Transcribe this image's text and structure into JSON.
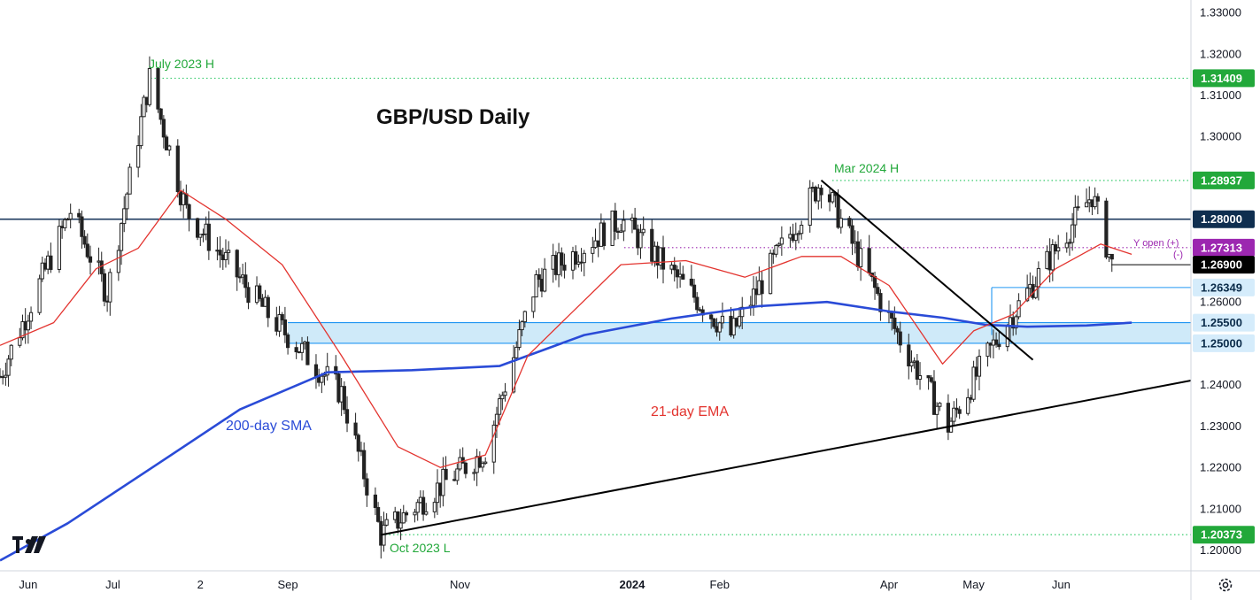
{
  "chart_data": {
    "type": "candlestick",
    "title": "GBP/USD Daily",
    "instrument": "GBP/USD",
    "timeframe": "Daily",
    "ylim": [
      1.195,
      1.333
    ],
    "y_ticks": [
      "1.33000",
      "1.32000",
      "1.31000",
      "1.30000",
      "1.29000",
      "1.28000",
      "1.27000",
      "1.26000",
      "1.25000",
      "1.24000",
      "1.23000",
      "1.22000",
      "1.21000",
      "1.20000"
    ],
    "x_ticks": [
      "Jun",
      "Jul",
      "2",
      "Sep",
      "Nov",
      "2024",
      "Feb",
      "Apr",
      "May",
      "Jun"
    ],
    "x_tick_dates": [
      "2023-06-01",
      "2023-07-01",
      "2023-08-01",
      "2023-09-01",
      "2023-11-01",
      "2024-01-01",
      "2024-02-01",
      "2024-04-01",
      "2024-05-01",
      "2024-06-01"
    ],
    "x_range": [
      "2023-05-22",
      "2024-07-17"
    ],
    "series": [
      {
        "name": "200-day SMA",
        "color": "#2a4bd7",
        "x": [
          "2023-05-22",
          "2023-06-15",
          "2023-07-15",
          "2023-08-15",
          "2023-09-15",
          "2023-10-15",
          "2023-11-15",
          "2023-12-15",
          "2024-01-15",
          "2024-02-15",
          "2024-03-10",
          "2024-04-01",
          "2024-04-20",
          "2024-05-05",
          "2024-05-20",
          "2024-06-10",
          "2024-06-26"
        ],
        "y": [
          1.1975,
          1.2065,
          1.22,
          1.234,
          1.243,
          1.2435,
          1.2445,
          1.252,
          1.256,
          1.259,
          1.26,
          1.2577,
          1.2562,
          1.2545,
          1.254,
          1.2543,
          1.255
        ]
      },
      {
        "name": "21-day EMA",
        "color": "#e3342f",
        "x": [
          "2023-05-22",
          "2023-06-10",
          "2023-06-25",
          "2023-07-10",
          "2023-07-25",
          "2023-08-10",
          "2023-08-30",
          "2023-09-20",
          "2023-10-10",
          "2023-10-25",
          "2023-11-10",
          "2023-11-25",
          "2023-12-10",
          "2023-12-28",
          "2024-01-20",
          "2024-02-10",
          "2024-03-01",
          "2024-03-15",
          "2024-04-01",
          "2024-04-20",
          "2024-05-01",
          "2024-05-15",
          "2024-05-30",
          "2024-06-15",
          "2024-06-26"
        ],
        "y": [
          1.2495,
          1.255,
          1.268,
          1.273,
          1.287,
          1.28,
          1.269,
          1.247,
          1.225,
          1.22,
          1.223,
          1.247,
          1.257,
          1.269,
          1.27,
          1.266,
          1.271,
          1.271,
          1.264,
          1.245,
          1.253,
          1.257,
          1.268,
          1.274,
          1.2715
        ]
      }
    ],
    "horizontal_levels": [
      {
        "label": "1.31409",
        "value": 1.31409,
        "color": "#22c55e",
        "style": "dotted"
      },
      {
        "label": "1.28937",
        "value": 1.28937,
        "color": "#22c55e",
        "style": "dotted"
      },
      {
        "label": "1.28000",
        "value": 1.28,
        "color": "#1e3a5f",
        "style": "solid"
      },
      {
        "label": "1.27313",
        "value": 1.27313,
        "color": "#9c27b0",
        "style": "dotted"
      },
      {
        "label": "1.26900",
        "value": 1.269,
        "color": "#000000",
        "style": "solid"
      },
      {
        "label": "1.26349",
        "value": 1.26349,
        "color": "#2196f3",
        "style": "solid"
      },
      {
        "label": "1.25500",
        "value": 1.255,
        "color": "#2196f3",
        "style": "solid"
      },
      {
        "label": "1.25000",
        "value": 1.25,
        "color": "#2196f3",
        "style": "solid"
      },
      {
        "label": "1.20373",
        "value": 1.20373,
        "color": "#22c55e",
        "style": "dotted"
      }
    ],
    "support_zone": [
      1.25,
      1.255
    ],
    "trendlines": [
      {
        "name": "uptrend support",
        "from": [
          "2023-10-04",
          1.2037
        ],
        "to": [
          "2024-07-17",
          1.241
        ]
      },
      {
        "name": "downtrend resistance",
        "from": [
          "2024-03-08",
          1.2894
        ],
        "to": [
          "2024-05-22",
          1.246
        ]
      }
    ],
    "annotations": [
      {
        "text": "July 2023 H",
        "date": "2023-07-14",
        "value": 1.3141,
        "color": "#22a83a"
      },
      {
        "text": "Mar 2024 H",
        "date": "2024-03-08",
        "value": 1.2894,
        "color": "#22a83a"
      },
      {
        "text": "Oct 2023 L",
        "date": "2023-10-04",
        "value": 1.2037,
        "color": "#22a83a"
      },
      {
        "text": "200-day SMA",
        "color": "#2a4bd7"
      },
      {
        "text": "21-day EMA",
        "color": "#e3342f"
      },
      {
        "text": "Y open (+)",
        "color": "#9c27b0"
      },
      {
        "text": "(-)",
        "color": "#9c27b0"
      }
    ]
  }
}
